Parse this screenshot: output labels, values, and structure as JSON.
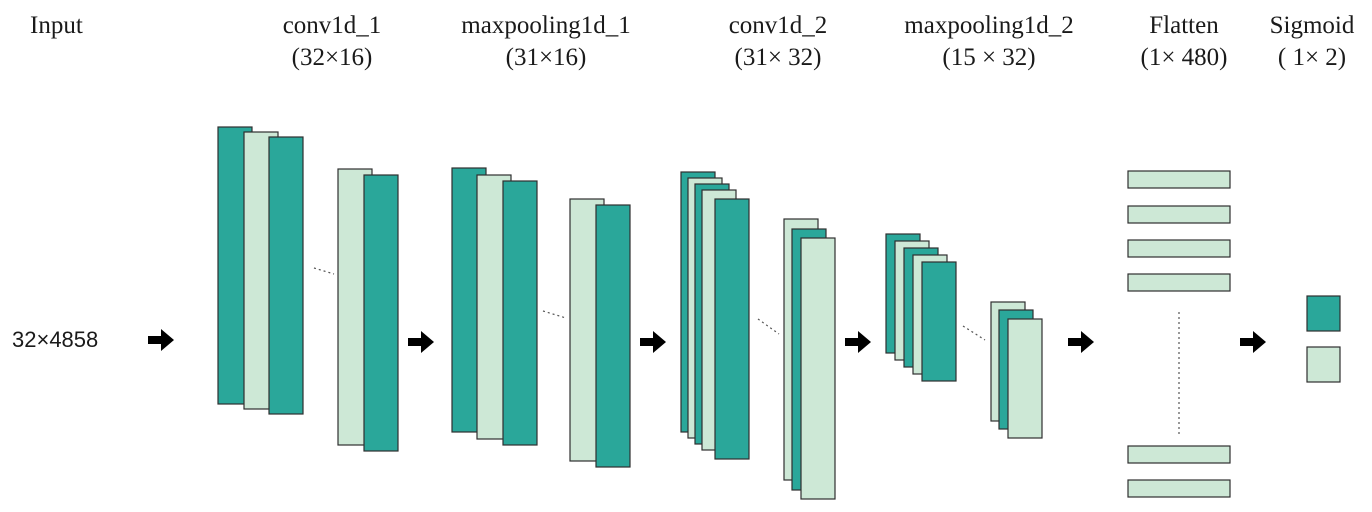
{
  "colors": {
    "teal": "#2aa79a",
    "mint": "#cde8d6",
    "stroke": "#2f2f2f",
    "arrow": "#000000"
  },
  "input": {
    "label": "Input",
    "size": "32×4858"
  },
  "layers": [
    {
      "name": "conv1d_1",
      "shape": "(32×16)"
    },
    {
      "name": "maxpooling1d_1",
      "shape": "(31×16)"
    },
    {
      "name": "conv1d_2",
      "shape": "(31× 32)"
    },
    {
      "name": "maxpooling1d_2",
      "shape": "(15 × 32)"
    },
    {
      "name": "Flatten",
      "shape": "(1× 480)"
    },
    {
      "name": "Sigmoid",
      "shape": "( 1× 2)"
    }
  ]
}
